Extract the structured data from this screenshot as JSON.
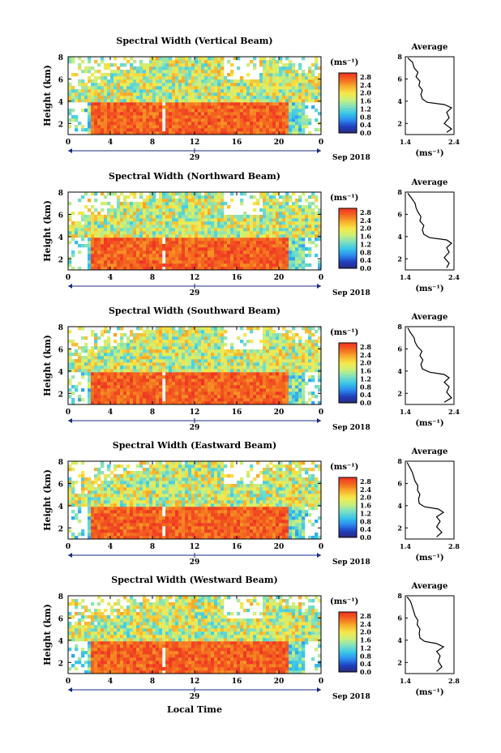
{
  "figure": {
    "xlabel": "Local Time",
    "date_label": "Sep 2018",
    "day_label": "29",
    "height_label": "Height (km)",
    "unit_label": "(ms⁻¹)",
    "avg_title": "Average"
  },
  "colorscale": {
    "stops": [
      "#2a2a7a",
      "#1f3fbf",
      "#2c8cf0",
      "#39c8e8",
      "#7fe0c0",
      "#c9f07a",
      "#f7e84a",
      "#f8b02c",
      "#f46a1e",
      "#ee3325"
    ],
    "background": "#ffffff"
  },
  "chart_data": [
    {
      "type": "heatmap",
      "title": "Spectral Width (Vertical Beam)",
      "x_ticks": [
        "0",
        "4",
        "8",
        "12",
        "16",
        "20",
        "0"
      ],
      "xlim": [
        0,
        24
      ],
      "ylim": [
        1,
        8
      ],
      "y_ticks": [
        "2",
        "4",
        "6",
        "8"
      ],
      "colorbar_ticks": [
        "0.0",
        "0.4",
        "0.8",
        "1.2",
        "1.6",
        "2.0",
        "2.4",
        "2.8"
      ],
      "colorbar_range": [
        0,
        3.0
      ],
      "average_profile": {
        "xlim": [
          1.4,
          2.4
        ],
        "x_ticks": [
          "1.4",
          "2.4"
        ],
        "ylim": [
          1,
          8
        ],
        "y_ticks": [
          "2",
          "4",
          "6",
          "8"
        ],
        "points": [
          [
            2.25,
            1.2
          ],
          [
            2.35,
            1.5
          ],
          [
            2.2,
            2.0
          ],
          [
            2.3,
            2.5
          ],
          [
            2.25,
            3.0
          ],
          [
            2.35,
            3.4
          ],
          [
            2.2,
            3.7
          ],
          [
            1.85,
            3.9
          ],
          [
            1.75,
            4.2
          ],
          [
            1.72,
            4.6
          ],
          [
            1.75,
            5.0
          ],
          [
            1.68,
            5.4
          ],
          [
            1.7,
            5.8
          ],
          [
            1.62,
            6.2
          ],
          [
            1.66,
            6.6
          ],
          [
            1.58,
            7.0
          ],
          [
            1.55,
            7.5
          ],
          [
            1.45,
            7.9
          ]
        ]
      }
    },
    {
      "type": "heatmap",
      "title": "Spectral Width (Northward Beam)",
      "x_ticks": [
        "0",
        "4",
        "8",
        "12",
        "16",
        "20",
        "0"
      ],
      "xlim": [
        0,
        24
      ],
      "ylim": [
        1,
        8
      ],
      "y_ticks": [
        "2",
        "4",
        "6",
        "8"
      ],
      "colorbar_ticks": [
        "0.0",
        "0.4",
        "0.8",
        "1.2",
        "1.6",
        "2.0",
        "2.4",
        "2.8"
      ],
      "colorbar_range": [
        0,
        3.0
      ],
      "average_profile": {
        "xlim": [
          1.4,
          2.4
        ],
        "x_ticks": [
          "1.4",
          "2.4"
        ],
        "ylim": [
          1,
          8
        ],
        "y_ticks": [
          "2",
          "4",
          "6",
          "8"
        ],
        "points": [
          [
            2.25,
            1.2
          ],
          [
            2.3,
            1.6
          ],
          [
            2.2,
            2.1
          ],
          [
            2.3,
            2.6
          ],
          [
            2.25,
            3.0
          ],
          [
            2.35,
            3.4
          ],
          [
            2.25,
            3.7
          ],
          [
            1.9,
            3.9
          ],
          [
            1.78,
            4.2
          ],
          [
            1.75,
            4.6
          ],
          [
            1.78,
            5.0
          ],
          [
            1.7,
            5.4
          ],
          [
            1.72,
            5.8
          ],
          [
            1.66,
            6.2
          ],
          [
            1.62,
            6.6
          ],
          [
            1.6,
            7.0
          ],
          [
            1.52,
            7.5
          ],
          [
            1.45,
            7.9
          ]
        ]
      }
    },
    {
      "type": "heatmap",
      "title": "Spectral Width (Southward Beam)",
      "x_ticks": [
        "0",
        "4",
        "8",
        "12",
        "16",
        "20",
        "0"
      ],
      "xlim": [
        0,
        24
      ],
      "ylim": [
        1,
        8
      ],
      "y_ticks": [
        "2",
        "4",
        "6",
        "8"
      ],
      "colorbar_ticks": [
        "0.0",
        "0.4",
        "0.8",
        "1.2",
        "1.6",
        "2.0",
        "2.4",
        "2.8"
      ],
      "colorbar_range": [
        0,
        3.0
      ],
      "average_profile": {
        "xlim": [
          1.4,
          2.4
        ],
        "x_ticks": [
          "1.4",
          "2.4"
        ],
        "ylim": [
          1,
          8
        ],
        "y_ticks": [
          "2",
          "4",
          "6",
          "8"
        ],
        "points": [
          [
            2.2,
            1.2
          ],
          [
            2.35,
            1.6
          ],
          [
            2.25,
            2.1
          ],
          [
            2.3,
            2.6
          ],
          [
            2.2,
            3.0
          ],
          [
            2.3,
            3.4
          ],
          [
            2.2,
            3.7
          ],
          [
            1.9,
            3.9
          ],
          [
            1.75,
            4.2
          ],
          [
            1.72,
            4.6
          ],
          [
            1.76,
            5.0
          ],
          [
            1.7,
            5.4
          ],
          [
            1.74,
            5.8
          ],
          [
            1.65,
            6.2
          ],
          [
            1.6,
            6.6
          ],
          [
            1.58,
            7.0
          ],
          [
            1.5,
            7.5
          ],
          [
            1.45,
            7.9
          ]
        ]
      }
    },
    {
      "type": "heatmap",
      "title": "Spectral Width (Eastward Beam)",
      "x_ticks": [
        "0",
        "4",
        "8",
        "12",
        "16",
        "20",
        "0"
      ],
      "xlim": [
        0,
        24
      ],
      "ylim": [
        1,
        8
      ],
      "y_ticks": [
        "2",
        "4",
        "6",
        "8"
      ],
      "colorbar_ticks": [
        "0.0",
        "0.4",
        "0.8",
        "1.2",
        "1.6",
        "2.0",
        "2.4",
        "2.8"
      ],
      "colorbar_range": [
        0,
        3.0
      ],
      "average_profile": {
        "xlim": [
          1.4,
          2.8
        ],
        "x_ticks": [
          "1.4",
          "2.8"
        ],
        "ylim": [
          1,
          8
        ],
        "y_ticks": [
          "2",
          "4",
          "6",
          "8"
        ],
        "points": [
          [
            2.3,
            1.2
          ],
          [
            2.45,
            1.6
          ],
          [
            2.3,
            2.1
          ],
          [
            2.4,
            2.6
          ],
          [
            2.3,
            3.0
          ],
          [
            2.5,
            3.4
          ],
          [
            2.35,
            3.7
          ],
          [
            1.95,
            3.9
          ],
          [
            1.8,
            4.2
          ],
          [
            1.78,
            4.6
          ],
          [
            1.82,
            5.0
          ],
          [
            1.75,
            5.4
          ],
          [
            1.76,
            5.8
          ],
          [
            1.68,
            6.2
          ],
          [
            1.64,
            6.6
          ],
          [
            1.6,
            7.0
          ],
          [
            1.52,
            7.5
          ],
          [
            1.45,
            7.9
          ]
        ]
      }
    },
    {
      "type": "heatmap",
      "title": "Spectral Width (Westward Beam)",
      "x_ticks": [
        "0",
        "4",
        "8",
        "12",
        "16",
        "20",
        "0"
      ],
      "xlim": [
        0,
        24
      ],
      "ylim": [
        1,
        8
      ],
      "y_ticks": [
        "2",
        "4",
        "6",
        "8"
      ],
      "colorbar_ticks": [
        "0.0",
        "0.4",
        "0.8",
        "1.2",
        "1.6",
        "2.0",
        "2.4",
        "2.8"
      ],
      "colorbar_range": [
        0,
        3.0
      ],
      "average_profile": {
        "xlim": [
          1.4,
          2.8
        ],
        "x_ticks": [
          "1.4",
          "2.8"
        ],
        "ylim": [
          1,
          8
        ],
        "y_ticks": [
          "2",
          "4",
          "6",
          "8"
        ],
        "points": [
          [
            2.3,
            1.2
          ],
          [
            2.45,
            1.6
          ],
          [
            2.35,
            2.1
          ],
          [
            2.4,
            2.6
          ],
          [
            2.3,
            3.0
          ],
          [
            2.5,
            3.4
          ],
          [
            2.3,
            3.7
          ],
          [
            1.95,
            3.9
          ],
          [
            1.82,
            4.2
          ],
          [
            1.8,
            4.6
          ],
          [
            1.82,
            5.0
          ],
          [
            1.74,
            5.4
          ],
          [
            1.76,
            5.8
          ],
          [
            1.68,
            6.2
          ],
          [
            1.64,
            6.6
          ],
          [
            1.6,
            7.0
          ],
          [
            1.55,
            7.5
          ],
          [
            1.45,
            7.9
          ]
        ]
      }
    }
  ]
}
